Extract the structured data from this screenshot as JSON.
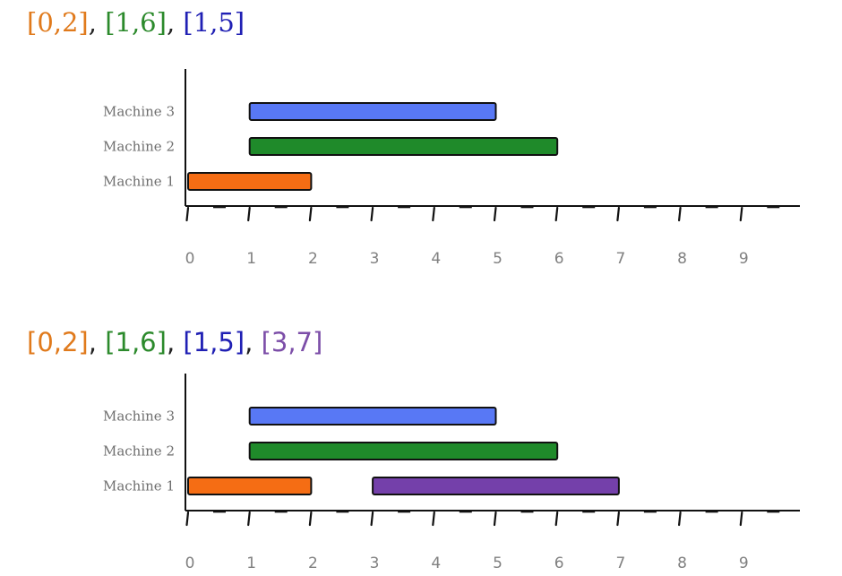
{
  "colors": {
    "orange": "#f56d14",
    "green": "#1f8a2a",
    "blue": "#5878f5",
    "purple": "#7440aa",
    "title_orange": "#e07a1c",
    "title_green": "#2c8a2c",
    "title_blue": "#2020b4",
    "title_purple": "#7c4ea8"
  },
  "chart_data": [
    {
      "type": "gantt",
      "title_parts": [
        {
          "text": "[0,2]",
          "color": "#e07a1c"
        },
        {
          "text": ", ",
          "color": "#222222"
        },
        {
          "text": "[1,6]",
          "color": "#2c8a2c"
        },
        {
          "text": ", ",
          "color": "#222222"
        },
        {
          "text": "[1,5]",
          "color": "#2020b4"
        }
      ],
      "machines": [
        "Machine 1",
        "Machine 2",
        "Machine 3"
      ],
      "x_ticks": [
        0,
        1,
        2,
        3,
        4,
        5,
        6,
        7,
        8,
        9
      ],
      "xlim": [
        0,
        10
      ],
      "bars": [
        {
          "machine": "Machine 1",
          "start": 0,
          "end": 2,
          "color": "#f56d14"
        },
        {
          "machine": "Machine 2",
          "start": 1,
          "end": 6,
          "color": "#1f8a2a"
        },
        {
          "machine": "Machine 3",
          "start": 1,
          "end": 5,
          "color": "#5878f5"
        }
      ]
    },
    {
      "type": "gantt",
      "title_parts": [
        {
          "text": "[0,2]",
          "color": "#e07a1c"
        },
        {
          "text": ", ",
          "color": "#222222"
        },
        {
          "text": "[1,6]",
          "color": "#2c8a2c"
        },
        {
          "text": ", ",
          "color": "#222222"
        },
        {
          "text": "[1,5]",
          "color": "#2020b4"
        },
        {
          "text": ", ",
          "color": "#222222"
        },
        {
          "text": "[3,7]",
          "color": "#7c4ea8"
        }
      ],
      "machines": [
        "Machine 1",
        "Machine 2",
        "Machine 3"
      ],
      "x_ticks": [
        0,
        1,
        2,
        3,
        4,
        5,
        6,
        7,
        8,
        9
      ],
      "xlim": [
        0,
        10
      ],
      "bars": [
        {
          "machine": "Machine 1",
          "start": 0,
          "end": 2,
          "color": "#f56d14"
        },
        {
          "machine": "Machine 2",
          "start": 1,
          "end": 6,
          "color": "#1f8a2a"
        },
        {
          "machine": "Machine 3",
          "start": 1,
          "end": 5,
          "color": "#5878f5"
        },
        {
          "machine": "Machine 1",
          "start": 3,
          "end": 7,
          "color": "#7440aa"
        }
      ]
    }
  ]
}
